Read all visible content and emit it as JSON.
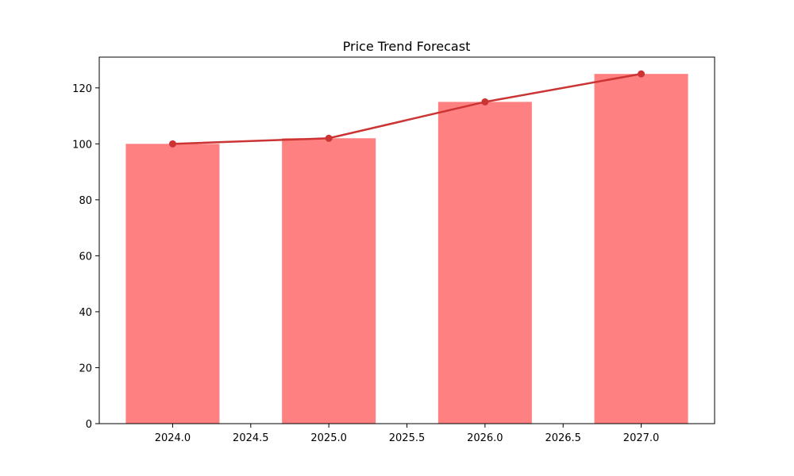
{
  "chart_data": {
    "type": "bar",
    "title": "Price Trend Forecast",
    "xlabel": "",
    "ylabel": "",
    "x": [
      2024,
      2025,
      2026,
      2027
    ],
    "series": [
      {
        "kind": "bar",
        "values": [
          100,
          102,
          115,
          125
        ],
        "color": "#ff8080"
      },
      {
        "kind": "line",
        "values": [
          100,
          102,
          115,
          125
        ],
        "color": "#cc3333"
      }
    ],
    "xlim": [
      2023.53,
      2027.47
    ],
    "ylim": [
      0,
      131
    ],
    "x_ticks": [
      "2024.0",
      "2024.5",
      "2025.0",
      "2025.5",
      "2026.0",
      "2026.5",
      "2027.0"
    ],
    "x_tick_values": [
      2024.0,
      2024.5,
      2025.0,
      2025.5,
      2026.0,
      2026.5,
      2027.0
    ],
    "y_ticks": [
      "0",
      "20",
      "40",
      "60",
      "80",
      "100",
      "120"
    ],
    "y_tick_values": [
      0,
      20,
      40,
      60,
      80,
      100,
      120
    ],
    "bar_width": 0.6,
    "grid": false,
    "legend": "none"
  }
}
